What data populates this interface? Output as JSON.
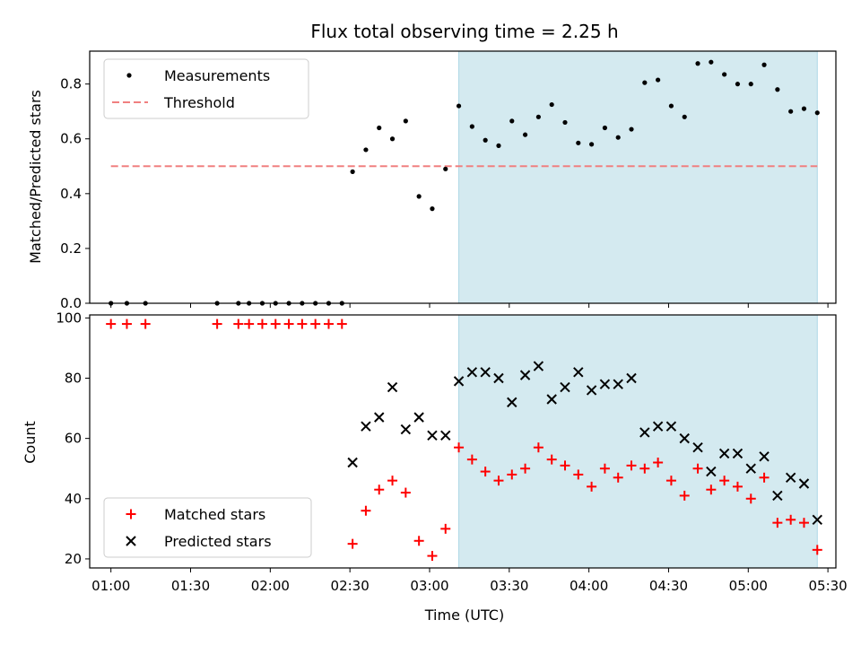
{
  "chart_data": [
    {
      "type": "scatter",
      "title": "Flux total observing time = 2.25 h",
      "ylabel": "Matched/Predicted stars",
      "xlabel": "",
      "ylim": [
        0,
        0.92
      ],
      "yticks": [
        "0.0",
        "0.2",
        "0.4",
        "0.6",
        "0.8"
      ],
      "ytick_values": [
        0.0,
        0.2,
        0.4,
        0.6,
        0.8
      ],
      "legend": {
        "location": "upper-left"
      },
      "highlight_span": {
        "x_start": "03:11",
        "x_end": "05:26",
        "color": "#d4eaf0"
      },
      "threshold": {
        "name": "Threshold",
        "value": 0.5,
        "x_start": "01:00",
        "x_end": "05:26",
        "color": "#f08080"
      },
      "series": [
        {
          "name": "Measurements",
          "marker": "dot",
          "color": "#000000",
          "points": [
            [
              "01:00",
              0.0
            ],
            [
              "01:06",
              0.0
            ],
            [
              "01:13",
              0.0
            ],
            [
              "01:40",
              0.0
            ],
            [
              "01:48",
              0.0
            ],
            [
              "01:52",
              0.0
            ],
            [
              "01:57",
              0.0
            ],
            [
              "02:02",
              0.0
            ],
            [
              "02:07",
              0.0
            ],
            [
              "02:12",
              0.0
            ],
            [
              "02:17",
              0.0
            ],
            [
              "02:22",
              0.0
            ],
            [
              "02:27",
              0.0
            ],
            [
              "02:31",
              0.48
            ],
            [
              "02:36",
              0.56
            ],
            [
              "02:41",
              0.64
            ],
            [
              "02:46",
              0.6
            ],
            [
              "02:51",
              0.665
            ],
            [
              "02:56",
              0.39
            ],
            [
              "03:01",
              0.345
            ],
            [
              "03:06",
              0.49
            ],
            [
              "03:11",
              0.72
            ],
            [
              "03:16",
              0.645
            ],
            [
              "03:21",
              0.595
            ],
            [
              "03:26",
              0.575
            ],
            [
              "03:31",
              0.665
            ],
            [
              "03:36",
              0.615
            ],
            [
              "03:41",
              0.68
            ],
            [
              "03:46",
              0.725
            ],
            [
              "03:51",
              0.66
            ],
            [
              "03:56",
              0.585
            ],
            [
              "04:01",
              0.58
            ],
            [
              "04:06",
              0.64
            ],
            [
              "04:11",
              0.605
            ],
            [
              "04:16",
              0.635
            ],
            [
              "04:21",
              0.805
            ],
            [
              "04:26",
              0.815
            ],
            [
              "04:31",
              0.72
            ],
            [
              "04:36",
              0.68
            ],
            [
              "04:41",
              0.875
            ],
            [
              "04:46",
              0.88
            ],
            [
              "04:51",
              0.835
            ],
            [
              "04:56",
              0.8
            ],
            [
              "05:01",
              0.8
            ],
            [
              "05:06",
              0.87
            ],
            [
              "05:11",
              0.78
            ],
            [
              "05:16",
              0.7
            ],
            [
              "05:21",
              0.71
            ],
            [
              "05:26",
              0.695
            ]
          ]
        }
      ]
    },
    {
      "type": "scatter",
      "title": "",
      "ylabel": "Count",
      "xlabel": "Time (UTC)",
      "ylim": [
        17,
        101
      ],
      "yticks": [
        "20",
        "40",
        "60",
        "80",
        "100"
      ],
      "ytick_values": [
        20,
        40,
        60,
        80,
        100
      ],
      "xlim": [
        "00:52",
        "05:33"
      ],
      "xticks": [
        "01:00",
        "01:30",
        "02:00",
        "02:30",
        "03:00",
        "03:30",
        "04:00",
        "04:30",
        "05:00",
        "05:30"
      ],
      "legend": {
        "location": "lower-left"
      },
      "highlight_span": {
        "x_start": "03:11",
        "x_end": "05:26",
        "color": "#d4eaf0"
      },
      "series": [
        {
          "name": "Matched stars",
          "marker": "plus",
          "color": "#ff0000",
          "points": [
            [
              "01:00",
              98
            ],
            [
              "01:06",
              98
            ],
            [
              "01:13",
              98
            ],
            [
              "01:40",
              98
            ],
            [
              "01:48",
              98
            ],
            [
              "01:52",
              98
            ],
            [
              "01:57",
              98
            ],
            [
              "02:02",
              98
            ],
            [
              "02:07",
              98
            ],
            [
              "02:12",
              98
            ],
            [
              "02:17",
              98
            ],
            [
              "02:22",
              98
            ],
            [
              "02:27",
              98
            ],
            [
              "02:31",
              25
            ],
            [
              "02:36",
              36
            ],
            [
              "02:41",
              43
            ],
            [
              "02:46",
              46
            ],
            [
              "02:51",
              42
            ],
            [
              "02:56",
              26
            ],
            [
              "03:01",
              21
            ],
            [
              "03:06",
              30
            ],
            [
              "03:11",
              57
            ],
            [
              "03:16",
              53
            ],
            [
              "03:21",
              49
            ],
            [
              "03:26",
              46
            ],
            [
              "03:31",
              48
            ],
            [
              "03:36",
              50
            ],
            [
              "03:41",
              57
            ],
            [
              "03:46",
              53
            ],
            [
              "03:51",
              51
            ],
            [
              "03:56",
              48
            ],
            [
              "04:01",
              44
            ],
            [
              "04:06",
              50
            ],
            [
              "04:11",
              47
            ],
            [
              "04:16",
              51
            ],
            [
              "04:21",
              50
            ],
            [
              "04:26",
              52
            ],
            [
              "04:31",
              46
            ],
            [
              "04:36",
              41
            ],
            [
              "04:41",
              50
            ],
            [
              "04:46",
              43
            ],
            [
              "04:51",
              46
            ],
            [
              "04:56",
              44
            ],
            [
              "05:01",
              40
            ],
            [
              "05:06",
              47
            ],
            [
              "05:11",
              32
            ],
            [
              "05:16",
              33
            ],
            [
              "05:21",
              32
            ],
            [
              "05:26",
              23
            ]
          ]
        },
        {
          "name": "Predicted stars",
          "marker": "cross",
          "color": "#000000",
          "points": [
            [
              "02:31",
              52
            ],
            [
              "02:36",
              64
            ],
            [
              "02:41",
              67
            ],
            [
              "02:46",
              77
            ],
            [
              "02:51",
              63
            ],
            [
              "02:56",
              67
            ],
            [
              "03:01",
              61
            ],
            [
              "03:06",
              61
            ],
            [
              "03:11",
              79
            ],
            [
              "03:16",
              82
            ],
            [
              "03:21",
              82
            ],
            [
              "03:26",
              80
            ],
            [
              "03:31",
              72
            ],
            [
              "03:36",
              81
            ],
            [
              "03:41",
              84
            ],
            [
              "03:46",
              73
            ],
            [
              "03:51",
              77
            ],
            [
              "03:56",
              82
            ],
            [
              "04:01",
              76
            ],
            [
              "04:06",
              78
            ],
            [
              "04:11",
              78
            ],
            [
              "04:16",
              80
            ],
            [
              "04:21",
              62
            ],
            [
              "04:26",
              64
            ],
            [
              "04:31",
              64
            ],
            [
              "04:36",
              60
            ],
            [
              "04:41",
              57
            ],
            [
              "04:46",
              49
            ],
            [
              "04:51",
              55
            ],
            [
              "04:56",
              55
            ],
            [
              "05:01",
              50
            ],
            [
              "05:06",
              54
            ],
            [
              "05:11",
              41
            ],
            [
              "05:16",
              47
            ],
            [
              "05:21",
              45
            ],
            [
              "05:26",
              33
            ]
          ]
        }
      ]
    }
  ]
}
